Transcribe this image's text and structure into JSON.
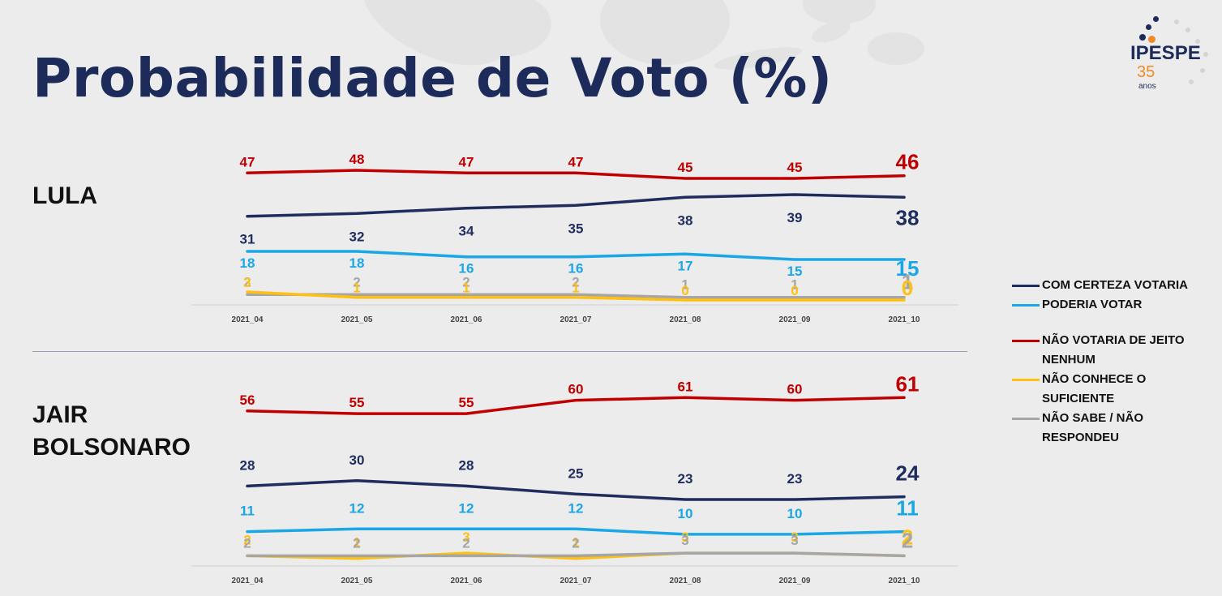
{
  "title": "Probabilidade de Voto (%)",
  "logo": {
    "name": "IPESPE",
    "anniversary": "35",
    "anniversary_unit": "anos"
  },
  "legend": [
    {
      "label": "COM CERTEZA VOTARIA",
      "color": "#1f2d5e"
    },
    {
      "label": "PODERIA VOTAR",
      "color": "#1ba6e6"
    },
    {
      "label": "NÃO VOTARIA DE JEITO NENHUM",
      "color": "#c00000"
    },
    {
      "label": "NÃO CONHECE O SUFICIENTE",
      "color": "#fec012"
    },
    {
      "label": "NÃO SABE / NÃO RESPONDEU",
      "color": "#a6a6a6"
    }
  ],
  "chart_data": [
    {
      "type": "line",
      "title": "LULA",
      "xlabel": "",
      "ylabel": "",
      "categories": [
        "2021_04",
        "2021_05",
        "2021_06",
        "2021_07",
        "2021_08",
        "2021_09",
        "2021_10"
      ],
      "ylim": [
        0,
        50
      ],
      "series": [
        {
          "name": "NÃO VOTARIA DE JEITO NENHUM",
          "color": "#c00000",
          "values": [
            47,
            48,
            47,
            47,
            45,
            45,
            46
          ]
        },
        {
          "name": "COM CERTEZA VOTARIA",
          "color": "#1f2d5e",
          "values": [
            31,
            32,
            34,
            35,
            38,
            39,
            38
          ]
        },
        {
          "name": "PODERIA VOTAR",
          "color": "#1ba6e6",
          "values": [
            18,
            18,
            16,
            16,
            17,
            15,
            15
          ]
        },
        {
          "name": "NÃO SABE / NÃO RESPONDEU",
          "color": "#a6a6a6",
          "values": [
            2,
            2,
            2,
            2,
            1,
            1,
            1
          ]
        },
        {
          "name": "NÃO CONHECE O SUFICIENTE",
          "color": "#fec012",
          "values": [
            3,
            1,
            1,
            1,
            0,
            0,
            0
          ]
        }
      ]
    },
    {
      "type": "line",
      "title": "JAIR BOLSONARO",
      "xlabel": "",
      "ylabel": "",
      "categories": [
        "2021_04",
        "2021_05",
        "2021_06",
        "2021_07",
        "2021_08",
        "2021_09",
        "2021_10"
      ],
      "ylim": [
        0,
        65
      ],
      "series": [
        {
          "name": "NÃO VOTARIA DE JEITO NENHUM",
          "color": "#c00000",
          "values": [
            56,
            55,
            55,
            60,
            61,
            60,
            61
          ]
        },
        {
          "name": "COM CERTEZA VOTARIA",
          "color": "#1f2d5e",
          "values": [
            28,
            30,
            28,
            25,
            23,
            23,
            24
          ]
        },
        {
          "name": "PODERIA VOTAR",
          "color": "#1ba6e6",
          "values": [
            11,
            12,
            12,
            12,
            10,
            10,
            11
          ]
        },
        {
          "name": "NÃO CONHECE O SUFICIENTE",
          "color": "#fec012",
          "values": [
            2,
            1,
            3,
            1,
            3,
            3,
            2
          ]
        },
        {
          "name": "NÃO SABE / NÃO RESPONDEU",
          "color": "#a6a6a6",
          "values": [
            2,
            2,
            2,
            2,
            3,
            3,
            2
          ]
        }
      ]
    }
  ]
}
